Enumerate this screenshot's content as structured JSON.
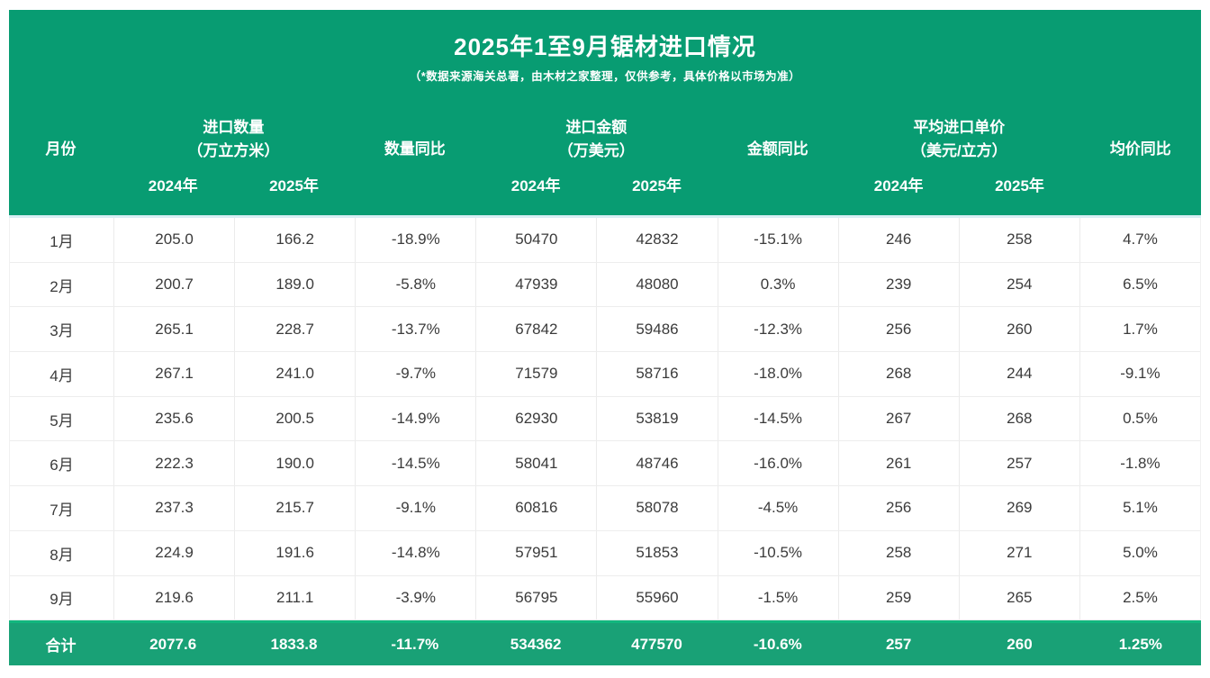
{
  "chart_data": {
    "type": "table",
    "title": "2025年1至9月锯材进口情况",
    "subtitle": "（*数据来源海关总署，由木材之家整理，仅供参考，具体价格以市场为准）",
    "columns": {
      "month": "月份",
      "qty_group_line1": "进口数量",
      "qty_group_line2": "（万立方米）",
      "qty_yoy": "数量同比",
      "amt_group_line1": "进口金额",
      "amt_group_line2": "（万美元）",
      "amt_yoy": "金额同比",
      "price_group_line1": "平均进口单价",
      "price_group_line2": "（美元/立方）",
      "price_yoy": "均价同比",
      "year_2024": "2024年",
      "year_2025": "2025年"
    },
    "rows": [
      {
        "month": "1月",
        "qty_2024": "205.0",
        "qty_2025": "166.2",
        "qty_yoy": "-18.9%",
        "amt_2024": "50470",
        "amt_2025": "42832",
        "amt_yoy": "-15.1%",
        "price_2024": "246",
        "price_2025": "258",
        "price_yoy": "4.7%"
      },
      {
        "month": "2月",
        "qty_2024": "200.7",
        "qty_2025": "189.0",
        "qty_yoy": "-5.8%",
        "amt_2024": "47939",
        "amt_2025": "48080",
        "amt_yoy": "0.3%",
        "price_2024": "239",
        "price_2025": "254",
        "price_yoy": "6.5%"
      },
      {
        "month": "3月",
        "qty_2024": "265.1",
        "qty_2025": "228.7",
        "qty_yoy": "-13.7%",
        "amt_2024": "67842",
        "amt_2025": "59486",
        "amt_yoy": "-12.3%",
        "price_2024": "256",
        "price_2025": "260",
        "price_yoy": "1.7%"
      },
      {
        "month": "4月",
        "qty_2024": "267.1",
        "qty_2025": "241.0",
        "qty_yoy": "-9.7%",
        "amt_2024": "71579",
        "amt_2025": "58716",
        "amt_yoy": "-18.0%",
        "price_2024": "268",
        "price_2025": "244",
        "price_yoy": "-9.1%"
      },
      {
        "month": "5月",
        "qty_2024": "235.6",
        "qty_2025": "200.5",
        "qty_yoy": "-14.9%",
        "amt_2024": "62930",
        "amt_2025": "53819",
        "amt_yoy": "-14.5%",
        "price_2024": "267",
        "price_2025": "268",
        "price_yoy": "0.5%"
      },
      {
        "month": "6月",
        "qty_2024": "222.3",
        "qty_2025": "190.0",
        "qty_yoy": "-14.5%",
        "amt_2024": "58041",
        "amt_2025": "48746",
        "amt_yoy": "-16.0%",
        "price_2024": "261",
        "price_2025": "257",
        "price_yoy": "-1.8%"
      },
      {
        "month": "7月",
        "qty_2024": "237.3",
        "qty_2025": "215.7",
        "qty_yoy": "-9.1%",
        "amt_2024": "60816",
        "amt_2025": "58078",
        "amt_yoy": "-4.5%",
        "price_2024": "256",
        "price_2025": "269",
        "price_yoy": "5.1%"
      },
      {
        "month": "8月",
        "qty_2024": "224.9",
        "qty_2025": "191.6",
        "qty_yoy": "-14.8%",
        "amt_2024": "57951",
        "amt_2025": "51853",
        "amt_yoy": "-10.5%",
        "price_2024": "258",
        "price_2025": "271",
        "price_yoy": "5.0%"
      },
      {
        "month": "9月",
        "qty_2024": "219.6",
        "qty_2025": "211.1",
        "qty_yoy": "-3.9%",
        "amt_2024": "56795",
        "amt_2025": "55960",
        "amt_yoy": "-1.5%",
        "price_2024": "259",
        "price_2025": "265",
        "price_yoy": "2.5%"
      }
    ],
    "total": {
      "month": "合计",
      "qty_2024": "2077.6",
      "qty_2025": "1833.8",
      "qty_yoy": "-11.7%",
      "amt_2024": "534362",
      "amt_2025": "477570",
      "amt_yoy": "-10.6%",
      "price_2024": "257",
      "price_2025": "260",
      "price_yoy": "1.25%"
    },
    "colors": {
      "header_bg": "#089c72",
      "total_row_bg": "#19a176",
      "yoy_negative_text": "#2fae7e",
      "yoy_positive_text": "#e2373e",
      "body_text": "#3b3b3b"
    },
    "layout_hints": {
      "grid": "on",
      "legend": "none"
    }
  }
}
